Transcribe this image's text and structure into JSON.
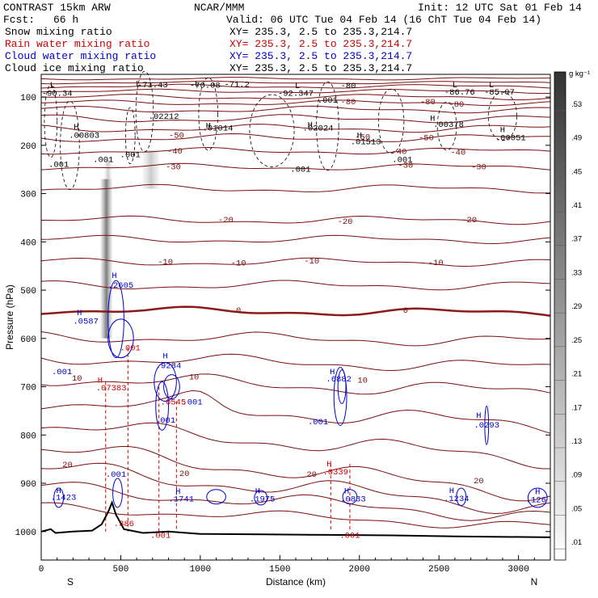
{
  "header": {
    "model": "CONTRAST 15km ARW",
    "center": "NCAR/MMM",
    "init": "Init: 12 UTC Sat 01 Feb 14",
    "fcst_label": "Fcst:",
    "fcst_value": "66 h",
    "valid": "Valid: 06 UTC Tue 04 Feb 14 (16 ChT Tue 04 Feb 14)"
  },
  "fields": [
    {
      "name": "Snow mixing ratio",
      "xy": "",
      "color": "#000000"
    },
    {
      "name": "Rain water mixing ratio",
      "xy": "XY= 235.3,  2.5 to 235.3,214.7",
      "color": "#cc0000"
    },
    {
      "name": "Cloud water mixing ratio",
      "xy": "XY= 235.3,  2.5 to 235.3,214.7",
      "color": "#0000cc"
    },
    {
      "name": "Cloud ice mixing ratio",
      "xy": "XY= 235.3,  2.5 to 235.3,214.7",
      "color": "#000000"
    }
  ],
  "xy_snow": "XY= 235.3,  2.5 to 235.3,214.7",
  "colors": {
    "temperature": "#7a0e0e",
    "rain": "#cc0000",
    "cloud_water": "#0000cc",
    "terrain": "#000000",
    "freezing_level": "#8b1a1a"
  },
  "chart_data": {
    "type": "cross-section",
    "xlabel": "Distance (km)",
    "ylabel": "Pressure (hPa)",
    "x_ticks": [
      0,
      500,
      1000,
      1500,
      2000,
      2500,
      3000
    ],
    "y_ticks": [
      100,
      200,
      300,
      400,
      500,
      600,
      700,
      800,
      900,
      1000
    ],
    "xlim": [
      0,
      3200
    ],
    "ylim": [
      1050,
      50
    ],
    "left_end_label": "S",
    "right_end_label": "N",
    "colorbar": {
      "unit": "g kg⁻¹",
      "ticks": [
        ".01",
        ".05",
        ".09",
        ".13",
        ".17",
        ".21",
        ".25",
        ".29",
        ".33",
        ".37",
        ".41",
        ".45",
        ".49",
        ".53"
      ]
    },
    "temperature_labels": [
      {
        "text": "-80",
        "x": 1930,
        "p": 110
      },
      {
        "text": "-80",
        "x": 2430,
        "p": 110
      },
      {
        "text": "-80",
        "x": 2610,
        "p": 115
      },
      {
        "text": "-50",
        "x": 850,
        "p": 180
      },
      {
        "text": "-50",
        "x": 2020,
        "p": 183
      },
      {
        "text": "-50",
        "x": 2420,
        "p": 185
      },
      {
        "text": "-40",
        "x": 840,
        "p": 212
      },
      {
        "text": "-40",
        "x": 2250,
        "p": 213
      },
      {
        "text": "-40",
        "x": 2620,
        "p": 215
      },
      {
        "text": "-30",
        "x": 830,
        "p": 245
      },
      {
        "text": "-30",
        "x": 2290,
        "p": 242
      },
      {
        "text": "-30",
        "x": 2750,
        "p": 245
      },
      {
        "text": "-20",
        "x": 1160,
        "p": 355
      },
      {
        "text": "-20",
        "x": 1910,
        "p": 358
      },
      {
        "text": "-20",
        "x": 2690,
        "p": 355
      },
      {
        "text": "-10",
        "x": 780,
        "p": 442
      },
      {
        "text": "-10",
        "x": 1240,
        "p": 444
      },
      {
        "text": "-10",
        "x": 1700,
        "p": 440
      },
      {
        "text": "-10",
        "x": 2480,
        "p": 443
      },
      {
        "text": "0",
        "x": 1240,
        "p": 542
      },
      {
        "text": "0",
        "x": 2290,
        "p": 542
      },
      {
        "text": "10",
        "x": 225,
        "p": 683
      },
      {
        "text": "10",
        "x": 960,
        "p": 680
      },
      {
        "text": "10",
        "x": 2020,
        "p": 687
      },
      {
        "text": "20",
        "x": 165,
        "p": 862
      },
      {
        "text": "20",
        "x": 900,
        "p": 880
      },
      {
        "text": "20",
        "x": 1700,
        "p": 882
      },
      {
        "text": "20",
        "x": 2750,
        "p": 895
      }
    ],
    "cloud_ice_extrema": [
      {
        "text": "L",
        "x": 70,
        "p": 75
      },
      {
        "text": "-90.34",
        "x": 100,
        "p": 93
      },
      {
        "text": "L",
        "x": 610,
        "p": 73
      },
      {
        "text": "-71.43",
        "x": 700,
        "p": 75
      },
      {
        "text": "L",
        "x": 980,
        "p": 73
      },
      {
        "text": "-70.08",
        "x": 1030,
        "p": 76
      },
      {
        "text": "-71.2",
        "x": 1230,
        "p": 74
      },
      {
        "text": "L",
        "x": 1610,
        "p": 77
      },
      {
        "text": "-92.347",
        "x": 1600,
        "p": 93
      },
      {
        "text": "-80",
        "x": 1930,
        "p": 77
      },
      {
        "text": "L",
        "x": 2600,
        "p": 75
      },
      {
        "text": "L",
        "x": 2830,
        "p": 75
      },
      {
        "text": "-86.76",
        "x": 2630,
        "p": 90
      },
      {
        "text": "-85.07",
        "x": 2880,
        "p": 90
      },
      {
        "text": ".001",
        "x": 1800,
        "p": 107
      },
      {
        "text": ".02212",
        "x": 770,
        "p": 140
      },
      {
        "text": "H",
        "x": 220,
        "p": 162
      },
      {
        "text": ".00803",
        "x": 270,
        "p": 180
      },
      {
        "text": "H",
        "x": 1050,
        "p": 160
      },
      {
        "text": ".01014",
        "x": 1110,
        "p": 165
      },
      {
        "text": "H",
        "x": 1690,
        "p": 158
      },
      {
        "text": ".02024",
        "x": 1740,
        "p": 165
      },
      {
        "text": "H",
        "x": 2000,
        "p": 180
      },
      {
        "text": ".01513",
        "x": 2040,
        "p": 193
      },
      {
        "text": "H",
        "x": 2460,
        "p": 145
      },
      {
        "text": ".00378",
        "x": 2560,
        "p": 157
      },
      {
        "text": "H",
        "x": 2900,
        "p": 168
      },
      {
        "text": ".00051",
        "x": 2950,
        "p": 185
      },
      {
        "text": ".001",
        "x": 110,
        "p": 240
      },
      {
        "text": ".001",
        "x": 390,
        "p": 230
      },
      {
        "text": ".001",
        "x": 560,
        "p": 220
      },
      {
        "text": ".001",
        "x": 1630,
        "p": 250
      },
      {
        "text": ".001",
        "x": 2270,
        "p": 230
      }
    ],
    "cloud_water_extrema": [
      {
        "text": "H",
        "x": 460,
        "p": 470
      },
      {
        "text": ".2605",
        "x": 500,
        "p": 490
      },
      {
        "text": "H",
        "x": 240,
        "p": 547
      },
      {
        "text": ".0587",
        "x": 280,
        "p": 565
      },
      {
        "text": "H",
        "x": 780,
        "p": 637
      },
      {
        "text": ".9284",
        "x": 800,
        "p": 657
      },
      {
        "text": ".001",
        "x": 130,
        "p": 669
      },
      {
        "text": ".001",
        "x": 950,
        "p": 732
      },
      {
        "text": ".001",
        "x": 780,
        "p": 770
      },
      {
        "text": "H",
        "x": 1830,
        "p": 669
      },
      {
        "text": ".6882",
        "x": 1870,
        "p": 684
      },
      {
        "text": ".001",
        "x": 1740,
        "p": 773
      },
      {
        "text": "H",
        "x": 2750,
        "p": 760
      },
      {
        "text": ".0293",
        "x": 2800,
        "p": 780
      },
      {
        "text": ".001",
        "x": 470,
        "p": 882
      },
      {
        "text": "H",
        "x": 110,
        "p": 915
      },
      {
        "text": ".1423",
        "x": 140,
        "p": 930
      },
      {
        "text": "H",
        "x": 860,
        "p": 917
      },
      {
        "text": ".1741",
        "x": 880,
        "p": 933
      },
      {
        "text": "H",
        "x": 1360,
        "p": 916
      },
      {
        "text": ".1975",
        "x": 1390,
        "p": 933
      },
      {
        "text": "H",
        "x": 1920,
        "p": 916
      },
      {
        "text": ".0833",
        "x": 1960,
        "p": 933
      },
      {
        "text": "H",
        "x": 2580,
        "p": 915
      },
      {
        "text": ".1234",
        "x": 2610,
        "p": 932
      },
      {
        "text": "H",
        "x": 3120,
        "p": 918
      },
      {
        "text": ".126",
        "x": 3110,
        "p": 935
      }
    ],
    "rain_extrema": [
      {
        "text": "H",
        "x": 370,
        "p": 687
      },
      {
        "text": ".07383",
        "x": 440,
        "p": 703
      },
      {
        "text": ".001",
        "x": 560,
        "p": 620
      },
      {
        "text": ".0545",
        "x": 830,
        "p": 732
      },
      {
        "text": ".386",
        "x": 520,
        "p": 984
      },
      {
        "text": "H",
        "x": 1810,
        "p": 860
      },
      {
        "text": ".0339",
        "x": 1850,
        "p": 877
      },
      {
        "text": ".001",
        "x": 750,
        "p": 1008
      },
      {
        "text": ".001",
        "x": 1940,
        "p": 1008
      }
    ]
  }
}
